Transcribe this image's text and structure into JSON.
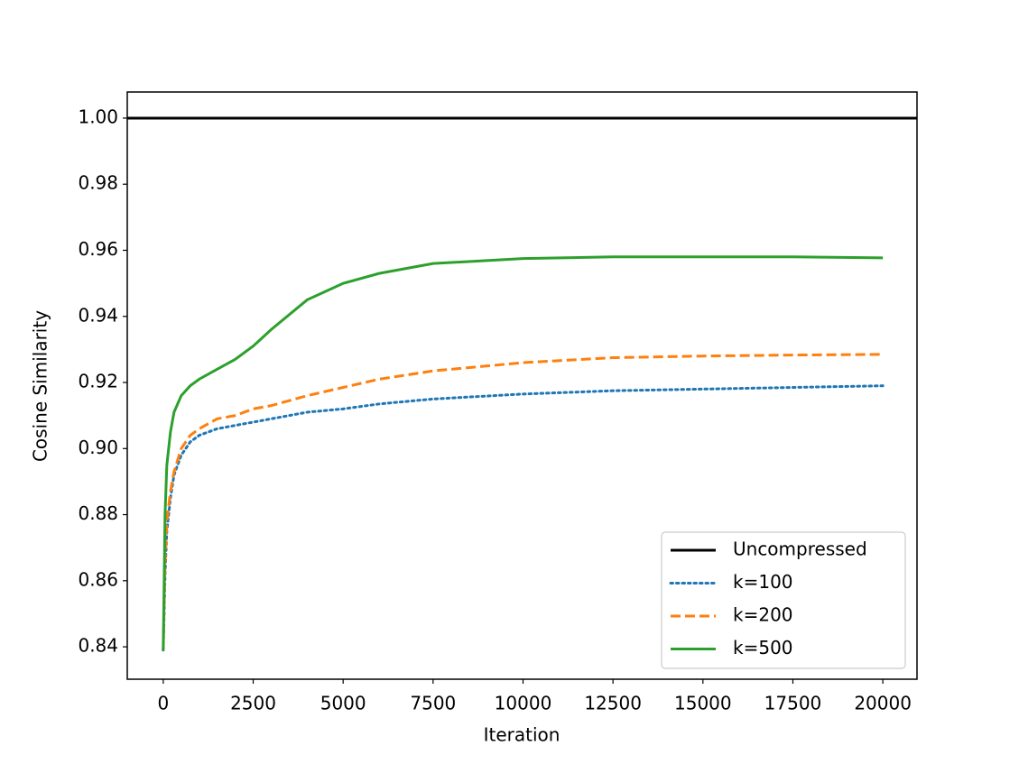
{
  "chart_data": {
    "type": "line",
    "x_label": "Iteration",
    "y_label": "Cosine Similarity",
    "x": [
      0,
      50,
      100,
      200,
      300,
      500,
      750,
      1000,
      1500,
      2000,
      2500,
      3000,
      4000,
      5000,
      6000,
      7500,
      10000,
      12500,
      15000,
      17500,
      20000
    ],
    "series": [
      {
        "name": "Uncompressed",
        "color": "#000000",
        "style": "solid",
        "hline": 1.0
      },
      {
        "name": "k=100",
        "color": "#1f77b4",
        "style": "dotted",
        "values": [
          0.839,
          0.862,
          0.875,
          0.885,
          0.892,
          0.898,
          0.902,
          0.904,
          0.906,
          0.907,
          0.908,
          0.909,
          0.911,
          0.912,
          0.9135,
          0.915,
          0.9165,
          0.9175,
          0.918,
          0.9185,
          0.919
        ]
      },
      {
        "name": "k=200",
        "color": "#ff7f0e",
        "style": "dashed",
        "values": [
          0.839,
          0.865,
          0.878,
          0.887,
          0.893,
          0.9,
          0.904,
          0.906,
          0.909,
          0.91,
          0.912,
          0.913,
          0.916,
          0.9185,
          0.921,
          0.9235,
          0.926,
          0.9275,
          0.928,
          0.9283,
          0.9285
        ]
      },
      {
        "name": "k=500",
        "color": "#2ca02c",
        "style": "solid",
        "values": [
          0.839,
          0.88,
          0.895,
          0.905,
          0.911,
          0.916,
          0.919,
          0.921,
          0.924,
          0.927,
          0.931,
          0.936,
          0.945,
          0.95,
          0.953,
          0.956,
          0.9575,
          0.958,
          0.958,
          0.958,
          0.9577
        ]
      }
    ],
    "xlim": [
      -1000,
      20950
    ],
    "ylim": [
      0.8302,
      1.0079
    ],
    "xticks": [
      0,
      2500,
      5000,
      7500,
      10000,
      12500,
      15000,
      17500,
      20000
    ],
    "yticks": [
      {
        "value": 0.84,
        "label": "0.84"
      },
      {
        "value": 0.86,
        "label": "0.86"
      },
      {
        "value": 0.88,
        "label": "0.88"
      },
      {
        "value": 0.9,
        "label": "0.90"
      },
      {
        "value": 0.92,
        "label": "0.92"
      },
      {
        "value": 0.94,
        "label": "0.94"
      },
      {
        "value": 0.96,
        "label": "0.96"
      },
      {
        "value": 0.98,
        "label": "0.98"
      },
      {
        "value": 1.0,
        "label": "1.00"
      }
    ],
    "grid": false,
    "legend": "lower right"
  }
}
